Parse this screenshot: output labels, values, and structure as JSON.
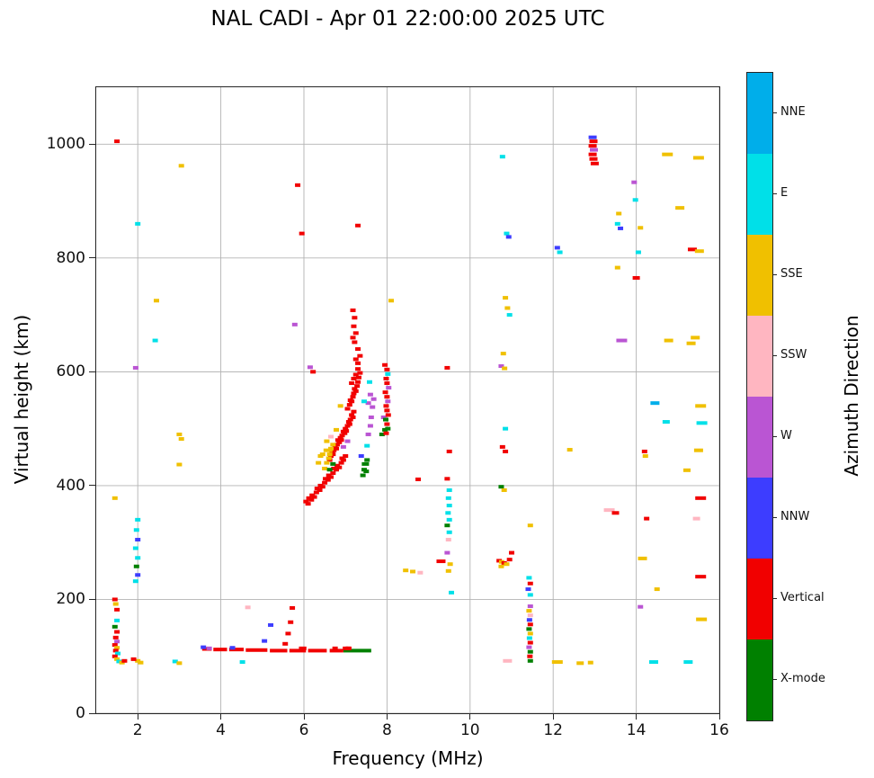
{
  "chart_data": {
    "type": "scatter",
    "title": "NAL CADI - Apr 01 22:00:00 2025 UTC",
    "xlabel": "Frequency (MHz)",
    "ylabel": "Virtual height (km)",
    "colorbar_label": "Azimuth Direction",
    "xlim": [
      1,
      16
    ],
    "ylim": [
      0,
      1100
    ],
    "xticks": [
      2,
      4,
      6,
      8,
      10,
      12,
      14,
      16
    ],
    "yticks": [
      0,
      200,
      400,
      600,
      800,
      1000
    ],
    "grid": true,
    "grid_color": "#b3b3b3",
    "marker": {
      "width": 6,
      "height": 4
    },
    "categories": [
      {
        "label": "X-mode",
        "color": "#008000"
      },
      {
        "label": "Vertical",
        "color": "#f10000"
      },
      {
        "label": "NNW",
        "color": "#3d3dff"
      },
      {
        "label": "W",
        "color": "#ba55d3"
      },
      {
        "label": "SSW",
        "color": "#ffb6c1"
      },
      {
        "label": "SSE",
        "color": "#f0c000"
      },
      {
        "label": "E",
        "color": "#00e0e8"
      },
      {
        "label": "NNE",
        "color": "#00aeea"
      }
    ],
    "segments": [
      [
        3.55,
        3.78,
        113,
        1
      ],
      [
        3.82,
        4.15,
        112,
        1
      ],
      [
        4.2,
        4.55,
        112,
        1
      ],
      [
        4.6,
        5.12,
        111,
        1
      ],
      [
        5.18,
        5.6,
        110,
        1
      ],
      [
        5.65,
        6.05,
        110,
        1
      ],
      [
        5.88,
        6.06,
        114,
        1
      ],
      [
        6.1,
        6.55,
        110,
        1
      ],
      [
        6.62,
        6.95,
        110,
        1
      ],
      [
        6.95,
        7.62,
        110,
        0
      ],
      [
        7.0,
        7.12,
        114,
        1
      ]
    ],
    "points": [
      [
        1.5,
        1005,
        1
      ],
      [
        1.45,
        378,
        5
      ],
      [
        1.45,
        200,
        1
      ],
      [
        1.47,
        192,
        5
      ],
      [
        1.5,
        182,
        1
      ],
      [
        1.5,
        163,
        6
      ],
      [
        1.45,
        152,
        0
      ],
      [
        1.5,
        143,
        1
      ],
      [
        1.47,
        133,
        1
      ],
      [
        1.5,
        126,
        3
      ],
      [
        1.45,
        120,
        1
      ],
      [
        1.5,
        115,
        5
      ],
      [
        1.47,
        110,
        1
      ],
      [
        1.52,
        105,
        6
      ],
      [
        1.45,
        100,
        1
      ],
      [
        1.5,
        95,
        5
      ],
      [
        1.55,
        91,
        6
      ],
      [
        1.62,
        89,
        5
      ],
      [
        1.68,
        92,
        1
      ],
      [
        2.0,
        860,
        6
      ],
      [
        1.95,
        607,
        3
      ],
      [
        2.0,
        340,
        6
      ],
      [
        1.97,
        322,
        6
      ],
      [
        2.0,
        305,
        2
      ],
      [
        1.95,
        290,
        6
      ],
      [
        2.0,
        273,
        6
      ],
      [
        1.97,
        258,
        0
      ],
      [
        2.0,
        243,
        2
      ],
      [
        1.95,
        232,
        6
      ],
      [
        2.0,
        92,
        5
      ],
      [
        2.07,
        89,
        5
      ],
      [
        1.9,
        95,
        1
      ],
      [
        2.45,
        725,
        5
      ],
      [
        2.42,
        655,
        6
      ],
      [
        3.05,
        962,
        5
      ],
      [
        3.0,
        490,
        5
      ],
      [
        3.05,
        482,
        5
      ],
      [
        3.0,
        437,
        5
      ],
      [
        2.9,
        91,
        6
      ],
      [
        3.0,
        88,
        5
      ],
      [
        4.52,
        90,
        6
      ],
      [
        3.58,
        116,
        2
      ],
      [
        3.72,
        114,
        3
      ],
      [
        4.28,
        115,
        2
      ],
      [
        4.65,
        186,
        4
      ],
      [
        5.05,
        127,
        2
      ],
      [
        5.2,
        155,
        2
      ],
      [
        5.55,
        122,
        1
      ],
      [
        5.62,
        140,
        1
      ],
      [
        5.68,
        160,
        1
      ],
      [
        5.72,
        185,
        1
      ],
      [
        6.75,
        114,
        1
      ],
      [
        7.0,
        114,
        1
      ],
      [
        7.08,
        114,
        1
      ],
      [
        5.85,
        928,
        1
      ],
      [
        5.95,
        843,
        1
      ],
      [
        7.3,
        857,
        1
      ],
      [
        5.78,
        683,
        3
      ],
      [
        8.1,
        725,
        5
      ],
      [
        6.05,
        372,
        1
      ],
      [
        6.1,
        368,
        1
      ],
      [
        6.12,
        378,
        1
      ],
      [
        6.18,
        375,
        1
      ],
      [
        6.2,
        383,
        1
      ],
      [
        6.25,
        380,
        1
      ],
      [
        6.3,
        388,
        1
      ],
      [
        6.32,
        395,
        1
      ],
      [
        6.38,
        392,
        1
      ],
      [
        6.4,
        400,
        1
      ],
      [
        6.45,
        398,
        1
      ],
      [
        6.5,
        405,
        1
      ],
      [
        6.52,
        412,
        1
      ],
      [
        6.58,
        410,
        1
      ],
      [
        6.6,
        418,
        1
      ],
      [
        6.65,
        415,
        1
      ],
      [
        6.7,
        422,
        1
      ],
      [
        6.72,
        430,
        1
      ],
      [
        6.78,
        428,
        1
      ],
      [
        6.8,
        435,
        1
      ],
      [
        6.85,
        432,
        1
      ],
      [
        6.9,
        440,
        1
      ],
      [
        6.92,
        448,
        1
      ],
      [
        6.95,
        445,
        1
      ],
      [
        7.0,
        452,
        1
      ],
      [
        6.62,
        445,
        1
      ],
      [
        6.65,
        452,
        1
      ],
      [
        6.68,
        460,
        1
      ],
      [
        6.7,
        455,
        1
      ],
      [
        6.72,
        462,
        1
      ],
      [
        6.75,
        470,
        1
      ],
      [
        6.78,
        465,
        1
      ],
      [
        6.8,
        472,
        1
      ],
      [
        6.82,
        480,
        1
      ],
      [
        6.85,
        476,
        1
      ],
      [
        6.88,
        484,
        1
      ],
      [
        6.9,
        480,
        1
      ],
      [
        6.92,
        488,
        1
      ],
      [
        6.95,
        495,
        1
      ],
      [
        6.98,
        492,
        1
      ],
      [
        7.0,
        500,
        1
      ],
      [
        7.02,
        496,
        1
      ],
      [
        7.05,
        505,
        1
      ],
      [
        7.08,
        512,
        1
      ],
      [
        7.1,
        508,
        1
      ],
      [
        7.12,
        516,
        1
      ],
      [
        7.15,
        524,
        1
      ],
      [
        7.18,
        520,
        1
      ],
      [
        7.2,
        530,
        1
      ],
      [
        7.05,
        535,
        1
      ],
      [
        7.1,
        542,
        1
      ],
      [
        7.12,
        550,
        1
      ],
      [
        7.15,
        548,
        1
      ],
      [
        7.18,
        556,
        1
      ],
      [
        7.2,
        562,
        1
      ],
      [
        7.22,
        570,
        1
      ],
      [
        7.25,
        566,
        1
      ],
      [
        7.28,
        575,
        1
      ],
      [
        7.3,
        582,
        1
      ],
      [
        7.32,
        590,
        1
      ],
      [
        7.35,
        598,
        1
      ],
      [
        7.3,
        605,
        1
      ],
      [
        7.25,
        595,
        1
      ],
      [
        7.2,
        588,
        1
      ],
      [
        7.15,
        580,
        1
      ],
      [
        7.3,
        615,
        1
      ],
      [
        7.25,
        622,
        1
      ],
      [
        7.35,
        628,
        1
      ],
      [
        7.3,
        640,
        1
      ],
      [
        7.22,
        652,
        1
      ],
      [
        7.18,
        660,
        1
      ],
      [
        7.25,
        668,
        1
      ],
      [
        7.2,
        680,
        1
      ],
      [
        7.22,
        695,
        1
      ],
      [
        7.18,
        708,
        1
      ],
      [
        6.15,
        608,
        3
      ],
      [
        6.22,
        600,
        1
      ],
      [
        6.35,
        440,
        5
      ],
      [
        6.4,
        452,
        5
      ],
      [
        6.45,
        455,
        5
      ],
      [
        6.5,
        430,
        5
      ],
      [
        6.55,
        440,
        5
      ],
      [
        6.6,
        448,
        5
      ],
      [
        6.62,
        455,
        5
      ],
      [
        6.58,
        462,
        5,
        10
      ],
      [
        6.65,
        465,
        5
      ],
      [
        6.7,
        472,
        5
      ],
      [
        6.55,
        478,
        5
      ],
      [
        6.78,
        498,
        5
      ],
      [
        6.88,
        540,
        5
      ],
      [
        6.62,
        428,
        0
      ],
      [
        6.7,
        438,
        0
      ],
      [
        7.42,
        418,
        0
      ],
      [
        7.45,
        428,
        0
      ],
      [
        7.48,
        438,
        0,
        8
      ],
      [
        7.5,
        425,
        0
      ],
      [
        7.52,
        445,
        0
      ],
      [
        7.88,
        490,
        0
      ],
      [
        7.95,
        498,
        0
      ],
      [
        7.55,
        490,
        3
      ],
      [
        7.6,
        505,
        3
      ],
      [
        7.62,
        520,
        3
      ],
      [
        7.65,
        538,
        3
      ],
      [
        7.68,
        552,
        3
      ],
      [
        7.6,
        560,
        3
      ],
      [
        7.55,
        545,
        3
      ],
      [
        7.92,
        520,
        3
      ],
      [
        6.95,
        468,
        3
      ],
      [
        7.05,
        478,
        3
      ],
      [
        7.52,
        470,
        6
      ],
      [
        7.45,
        548,
        6
      ],
      [
        7.58,
        582,
        6
      ],
      [
        7.38,
        452,
        2
      ],
      [
        6.65,
        486,
        4
      ],
      [
        7.95,
        612,
        1
      ],
      [
        8.0,
        604,
        1
      ],
      [
        8.02,
        596,
        6
      ],
      [
        7.98,
        588,
        1
      ],
      [
        8.0,
        580,
        1
      ],
      [
        8.04,
        572,
        3
      ],
      [
        7.96,
        564,
        1
      ],
      [
        8.0,
        556,
        1
      ],
      [
        8.02,
        548,
        3
      ],
      [
        7.98,
        540,
        1
      ],
      [
        8.0,
        532,
        1
      ],
      [
        8.03,
        524,
        1
      ],
      [
        7.97,
        516,
        0
      ],
      [
        8.0,
        508,
        1
      ],
      [
        8.02,
        500,
        0
      ],
      [
        7.98,
        492,
        1
      ],
      [
        8.45,
        251,
        5
      ],
      [
        8.62,
        249,
        5
      ],
      [
        8.8,
        247,
        4
      ],
      [
        8.75,
        411,
        1
      ],
      [
        9.45,
        607,
        1
      ],
      [
        9.5,
        460,
        1
      ],
      [
        9.45,
        412,
        1
      ],
      [
        9.5,
        392,
        6
      ],
      [
        9.48,
        378,
        6
      ],
      [
        9.5,
        365,
        6
      ],
      [
        9.47,
        352,
        6
      ],
      [
        9.5,
        340,
        6
      ],
      [
        9.45,
        330,
        0
      ],
      [
        9.5,
        318,
        6
      ],
      [
        9.48,
        305,
        4
      ],
      [
        9.45,
        282,
        3
      ],
      [
        9.52,
        262,
        5
      ],
      [
        9.48,
        250,
        5
      ],
      [
        9.55,
        212,
        6
      ],
      [
        9.3,
        267,
        1,
        10
      ],
      [
        10.78,
        978,
        6
      ],
      [
        10.88,
        843,
        6
      ],
      [
        10.93,
        837,
        2
      ],
      [
        10.85,
        730,
        5
      ],
      [
        10.9,
        712,
        5
      ],
      [
        10.95,
        700,
        6
      ],
      [
        10.8,
        632,
        5
      ],
      [
        10.75,
        610,
        3
      ],
      [
        10.83,
        606,
        5
      ],
      [
        10.85,
        500,
        6
      ],
      [
        10.78,
        468,
        1
      ],
      [
        10.85,
        460,
        1
      ],
      [
        10.75,
        398,
        0
      ],
      [
        10.82,
        392,
        5
      ],
      [
        10.7,
        268,
        1
      ],
      [
        10.76,
        266,
        5
      ],
      [
        10.82,
        264,
        1
      ],
      [
        10.88,
        262,
        5
      ],
      [
        10.75,
        258,
        5
      ],
      [
        10.95,
        270,
        1
      ],
      [
        11.0,
        282,
        1
      ],
      [
        10.9,
        92,
        4,
        10
      ],
      [
        11.45,
        330,
        5
      ],
      [
        11.42,
        238,
        6
      ],
      [
        11.45,
        228,
        1
      ],
      [
        11.4,
        218,
        2
      ],
      [
        11.45,
        208,
        6
      ],
      [
        11.45,
        188,
        3
      ],
      [
        11.42,
        180,
        5
      ],
      [
        11.45,
        172,
        4
      ],
      [
        11.43,
        164,
        2
      ],
      [
        11.45,
        156,
        1
      ],
      [
        11.42,
        148,
        0
      ],
      [
        11.45,
        140,
        5
      ],
      [
        11.43,
        132,
        6
      ],
      [
        11.45,
        124,
        1
      ],
      [
        11.42,
        116,
        3
      ],
      [
        11.45,
        108,
        0
      ],
      [
        11.44,
        100,
        1
      ],
      [
        11.45,
        92,
        0
      ],
      [
        12.1,
        818,
        2
      ],
      [
        12.16,
        810,
        6
      ],
      [
        12.1,
        90,
        5,
        12
      ],
      [
        12.4,
        463,
        5
      ],
      [
        12.65,
        88,
        5,
        8
      ],
      [
        12.9,
        89,
        5
      ],
      [
        12.95,
        1012,
        2,
        9
      ],
      [
        12.97,
        1005,
        1,
        9
      ],
      [
        12.95,
        997,
        1,
        9
      ],
      [
        12.98,
        990,
        3,
        9
      ],
      [
        12.95,
        982,
        1,
        9
      ],
      [
        12.97,
        974,
        1,
        9
      ],
      [
        13.0,
        966,
        1,
        9
      ],
      [
        13.35,
        357,
        4,
        12
      ],
      [
        13.5,
        352,
        1,
        8
      ],
      [
        13.58,
        878,
        5
      ],
      [
        13.55,
        860,
        6
      ],
      [
        13.62,
        852,
        2
      ],
      [
        13.55,
        783,
        5
      ],
      [
        13.65,
        655,
        3,
        12
      ],
      [
        13.95,
        933,
        3
      ],
      [
        13.98,
        902,
        6
      ],
      [
        14.1,
        853,
        5
      ],
      [
        14.05,
        810,
        6
      ],
      [
        14.0,
        765,
        1,
        8
      ],
      [
        14.2,
        460,
        1
      ],
      [
        14.22,
        452,
        5
      ],
      [
        14.25,
        342,
        1
      ],
      [
        14.15,
        272,
        5,
        10
      ],
      [
        14.1,
        187,
        3
      ],
      [
        14.42,
        90,
        6,
        10
      ],
      [
        14.5,
        218,
        5
      ],
      [
        14.45,
        545,
        7,
        10
      ],
      [
        14.72,
        512,
        6,
        8
      ],
      [
        14.75,
        982,
        5,
        12
      ],
      [
        15.5,
        976,
        5,
        12
      ],
      [
        15.05,
        888,
        5,
        10
      ],
      [
        15.35,
        815,
        1,
        10
      ],
      [
        15.52,
        812,
        5,
        10
      ],
      [
        14.78,
        655,
        5,
        10
      ],
      [
        15.42,
        660,
        5,
        10
      ],
      [
        15.32,
        650,
        5,
        10
      ],
      [
        15.55,
        540,
        5,
        12
      ],
      [
        15.58,
        510,
        6,
        12
      ],
      [
        15.5,
        462,
        5,
        10
      ],
      [
        15.22,
        427,
        5,
        8
      ],
      [
        15.55,
        378,
        1,
        12
      ],
      [
        15.45,
        342,
        4,
        8
      ],
      [
        15.55,
        240,
        1,
        12
      ],
      [
        15.57,
        165,
        5,
        12
      ],
      [
        15.25,
        90,
        6,
        10
      ]
    ]
  }
}
